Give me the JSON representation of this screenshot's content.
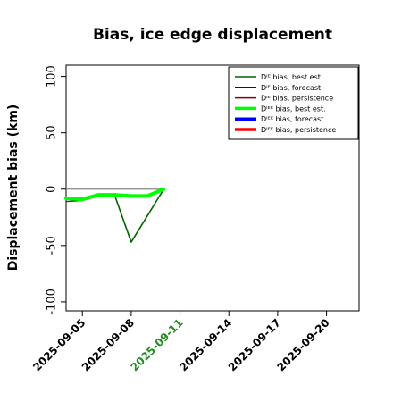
{
  "chart_data": {
    "type": "line",
    "title": "Bias, ice edge displacement",
    "ylabel": "Displacement bias (km)",
    "xlabel": "",
    "ylim": [
      -108,
      110
    ],
    "xlim": [
      "2025-09-04",
      "2025-09-22"
    ],
    "yticks": [
      -100,
      -50,
      0,
      50,
      100
    ],
    "ytick_labels": [
      "-100",
      "-50",
      "0",
      "50",
      "100"
    ],
    "xticks": [
      "2025-09-05",
      "2025-09-08",
      "2025-09-11",
      "2025-09-14",
      "2025-09-17",
      "2025-09-20"
    ],
    "xtick_colors": [
      "#000000",
      "#000000",
      "#228b22",
      "#000000",
      "#000000",
      "#000000"
    ],
    "grid": false,
    "legend_position": "top-right",
    "series": [
      {
        "name": "Dᴵᴱ bias, best est.",
        "color": "#006400",
        "width": 1.6,
        "points": [
          [
            "2025-09-04",
            -11
          ],
          [
            "2025-09-05",
            -10
          ],
          [
            "2025-09-06",
            -6
          ],
          [
            "2025-09-07",
            -6
          ],
          [
            "2025-09-08",
            -47
          ],
          [
            "2025-09-10",
            0
          ]
        ]
      },
      {
        "name": "Dᴵᴱ bias, forecast",
        "color": "#0000cd",
        "width": 1.4,
        "points": []
      },
      {
        "name": "Dᴵᴱ bias, persistence",
        "color": "#8b0000",
        "width": 1.4,
        "points": []
      },
      {
        "name": "Dᴵᴱᴱ bias, best est.",
        "color": "#00ff00",
        "width": 4,
        "points": [
          [
            "2025-09-04",
            -8
          ],
          [
            "2025-09-05",
            -9
          ],
          [
            "2025-09-06",
            -5
          ],
          [
            "2025-09-07",
            -5
          ],
          [
            "2025-09-08",
            -6
          ],
          [
            "2025-09-09",
            -6
          ],
          [
            "2025-09-10",
            0
          ]
        ]
      },
      {
        "name": "Dᴵᴱᴱ bias, forecast",
        "color": "#0000ff",
        "width": 4,
        "points": []
      },
      {
        "name": "Dᴵᴱᴱ bias, persistence",
        "color": "#ff0000",
        "width": 4,
        "points": []
      }
    ],
    "reference_line": {
      "color": "#888888",
      "points": [
        [
          "2025-09-04",
          0
        ],
        [
          "2025-09-10",
          0
        ]
      ]
    }
  }
}
